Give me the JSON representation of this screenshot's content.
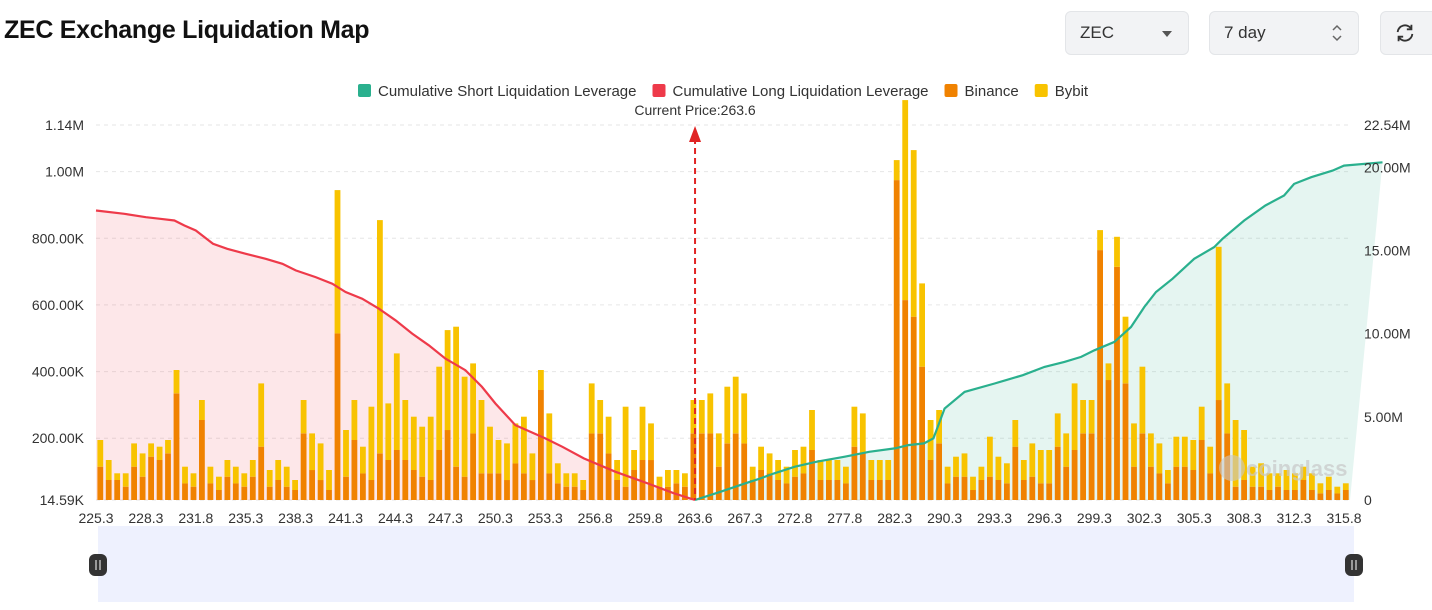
{
  "header": {
    "title": "ZEC Exchange Liquidation Map",
    "symbol_select": "ZEC",
    "period_select": "7 day"
  },
  "icons": {
    "symbol_dropdown": "chevron-down-icon",
    "period_stepper": "up-down-stepper-icon",
    "refresh": "refresh-icon",
    "watermark": "coinglass-logo"
  },
  "colors": {
    "short_cumulative": "#2ab08e",
    "long_cumulative": "#ee3a4a",
    "binance": "#f08200",
    "bybit": "#f8c300",
    "current_price_marker": "#e02424",
    "zoom_band": "#eef1fe"
  },
  "watermark_text": "coinglass",
  "chart_data": {
    "type": "bar",
    "legend": [
      {
        "name": "Cumulative Short Liquidation Leverage",
        "color": "#2ab08e"
      },
      {
        "name": "Cumulative Long Liquidation Leverage",
        "color": "#ee3a4a"
      },
      {
        "name": "Binance",
        "color": "#f08200"
      },
      {
        "name": "Bybit",
        "color": "#f8c300"
      }
    ],
    "legend_position": "top-center",
    "current_price_label": "Current Price:263.6",
    "current_price": 263.6,
    "x_tick_labels": [
      "225.3",
      "228.3",
      "231.8",
      "235.3",
      "238.3",
      "241.3",
      "244.3",
      "247.3",
      "250.3",
      "253.3",
      "256.8",
      "259.8",
      "263.6",
      "267.3",
      "272.8",
      "277.8",
      "282.3",
      "290.3",
      "293.3",
      "296.3",
      "299.3",
      "302.3",
      "305.3",
      "308.3",
      "312.3",
      "315.8"
    ],
    "left_axis": {
      "labels": [
        "1.14M",
        "1.00M",
        "800.00K",
        "600.00K",
        "400.00K",
        "200.00K",
        "14.59K"
      ],
      "values": [
        1140000,
        1000000,
        800000,
        600000,
        400000,
        200000,
        14590
      ],
      "min": 14590,
      "max": 1140000
    },
    "right_axis": {
      "labels": [
        "22.54M",
        "20.00M",
        "15.00M",
        "10.00M",
        "5.00M",
        "0"
      ],
      "values": [
        22540000,
        20000000,
        15000000,
        10000000,
        5000000,
        0
      ],
      "min": 0,
      "max": 22540000
    },
    "grid": true,
    "bar_series": [
      {
        "name": "Binance",
        "values": [
          100000,
          60000,
          60000,
          40000,
          100000,
          70000,
          130000,
          120000,
          140000,
          320000,
          50000,
          40000,
          240000,
          50000,
          30000,
          70000,
          50000,
          40000,
          70000,
          160000,
          40000,
          60000,
          40000,
          30000,
          200000,
          90000,
          60000,
          30000,
          500000,
          70000,
          180000,
          80000,
          60000,
          140000,
          120000,
          150000,
          120000,
          90000,
          70000,
          60000,
          150000,
          210000,
          100000,
          70000,
          200000,
          80000,
          80000,
          80000,
          60000,
          110000,
          80000,
          60000,
          330000,
          80000,
          50000,
          40000,
          40000,
          30000,
          200000,
          200000,
          140000,
          60000,
          40000,
          90000,
          120000,
          120000,
          40000,
          40000,
          50000,
          40000,
          200000,
          200000,
          200000,
          100000,
          170000,
          200000,
          170000,
          60000,
          90000,
          80000,
          60000,
          50000,
          70000,
          80000,
          150000,
          60000,
          60000,
          60000,
          50000,
          160000,
          140000,
          60000,
          60000,
          60000,
          960000,
          600000,
          550000,
          400000,
          120000,
          170000,
          50000,
          70000,
          70000,
          30000,
          60000,
          70000,
          60000,
          50000,
          160000,
          60000,
          70000,
          50000,
          50000,
          160000,
          100000,
          150000,
          200000,
          200000,
          750000,
          360000,
          700000,
          350000,
          100000,
          200000,
          100000,
          80000,
          50000,
          100000,
          100000,
          90000,
          180000,
          80000,
          300000,
          200000,
          40000,
          60000,
          40000,
          40000,
          30000,
          40000,
          30000,
          30000,
          60000,
          30000,
          20000,
          30000,
          20000,
          30000
        ]
      },
      {
        "name": "Bybit",
        "values": [
          80000,
          60000,
          20000,
          40000,
          70000,
          70000,
          40000,
          40000,
          40000,
          70000,
          50000,
          40000,
          60000,
          50000,
          40000,
          50000,
          50000,
          40000,
          50000,
          190000,
          50000,
          60000,
          60000,
          30000,
          100000,
          110000,
          110000,
          60000,
          430000,
          140000,
          120000,
          80000,
          220000,
          700000,
          170000,
          290000,
          180000,
          160000,
          150000,
          190000,
          250000,
          300000,
          420000,
          300000,
          210000,
          220000,
          140000,
          100000,
          110000,
          120000,
          170000,
          80000,
          60000,
          180000,
          60000,
          40000,
          40000,
          30000,
          150000,
          100000,
          110000,
          60000,
          240000,
          60000,
          160000,
          110000,
          30000,
          50000,
          40000,
          40000,
          100000,
          100000,
          120000,
          100000,
          170000,
          170000,
          150000,
          40000,
          70000,
          60000,
          60000,
          50000,
          80000,
          80000,
          120000,
          60000,
          60000,
          60000,
          50000,
          120000,
          120000,
          60000,
          60000,
          60000,
          60000,
          600000,
          500000,
          250000,
          120000,
          100000,
          50000,
          60000,
          70000,
          40000,
          40000,
          120000,
          70000,
          60000,
          80000,
          60000,
          100000,
          100000,
          100000,
          100000,
          100000,
          200000,
          100000,
          100000,
          60000,
          50000,
          90000,
          200000,
          130000,
          200000,
          100000,
          90000,
          40000,
          90000,
          90000,
          90000,
          100000,
          80000,
          460000,
          150000,
          200000,
          150000,
          60000,
          70000,
          50000,
          40000,
          60000,
          50000,
          40000,
          50000,
          30000,
          40000,
          20000,
          20000
        ]
      }
    ],
    "cumulative_long_M": [
      17.4,
      17.2,
      17.0,
      16.9,
      16.8,
      16.5,
      16.2,
      15.4,
      15.1,
      14.8,
      14.5,
      14.2,
      13.8,
      13.4,
      13.0,
      12.5,
      12.1,
      11.5,
      10.8,
      10.0,
      9.3,
      8.5,
      7.8,
      6.8,
      5.8,
      4.5,
      3.7,
      3.2,
      2.5,
      1.7,
      1.0,
      0.4,
      0.0
    ],
    "cumulative_long_x": [
      225.3,
      227.0,
      228.3,
      229.3,
      230.3,
      231.0,
      231.8,
      233.0,
      234.0,
      235.3,
      236.5,
      237.5,
      238.3,
      239.5,
      240.5,
      241.3,
      242.3,
      243.3,
      244.3,
      245.3,
      246.3,
      247.3,
      248.5,
      249.5,
      250.3,
      251.5,
      253.3,
      254.5,
      256.0,
      258.0,
      260.0,
      262.0,
      263.6
    ],
    "cumulative_short_M": [
      0.0,
      0.5,
      1.0,
      1.3,
      1.6,
      2.0,
      2.3,
      2.6,
      2.9,
      3.1,
      3.3,
      3.4,
      3.7,
      4.5,
      5.5,
      6.5,
      7.0,
      7.5,
      8.0,
      8.3,
      8.6,
      9.0,
      9.5,
      10.4,
      11.6,
      12.5,
      13.3,
      14.5,
      15.2,
      15.7,
      16.8,
      17.7,
      18.3,
      19.0,
      19.4,
      19.8,
      20.1,
      20.3
    ],
    "cumulative_short_x": [
      263.6,
      265.5,
      267.3,
      269.0,
      270.5,
      272.8,
      275.0,
      277.8,
      280.0,
      282.3,
      284.5,
      287.0,
      288.5,
      289.3,
      290.3,
      291.5,
      293.3,
      295.0,
      296.3,
      297.5,
      298.5,
      299.3,
      300.5,
      301.5,
      302.3,
      303.0,
      304.0,
      305.3,
      306.5,
      307.0,
      308.3,
      310.0,
      311.5,
      312.3,
      313.5,
      315.0,
      315.8,
      318.5
    ]
  },
  "zoom_slider": {
    "start": 0,
    "end": 100
  }
}
